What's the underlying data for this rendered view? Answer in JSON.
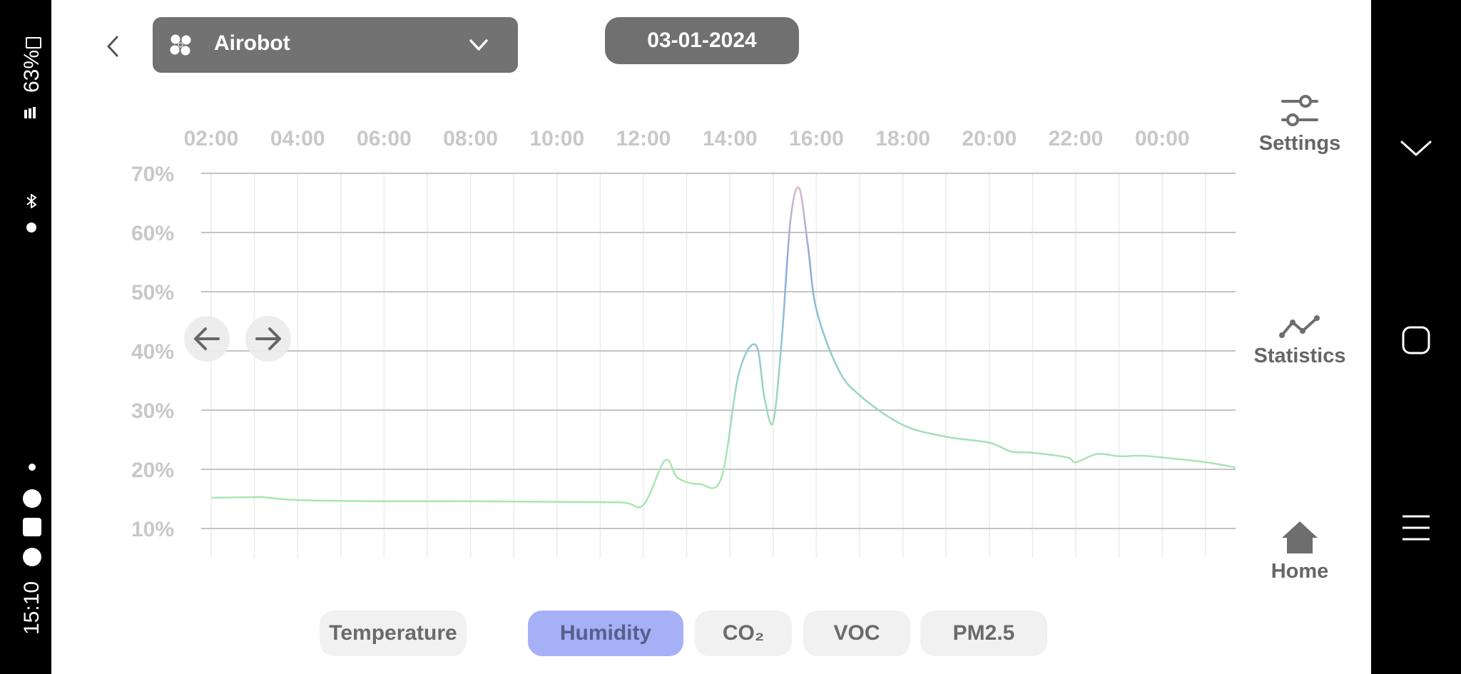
{
  "status_bar": {
    "time": "15:10",
    "battery": "63%",
    "signal": "VoLTE1"
  },
  "header": {
    "back_icon": "chevron-left-icon",
    "device": {
      "name": "Airobot",
      "icon": "fan-icon",
      "dropdown_icon": "chevron-down-icon"
    },
    "date": "03-01-2024"
  },
  "side_nav": [
    {
      "label": "Settings",
      "icon": "sliders-icon"
    },
    {
      "label": "Statistics",
      "icon": "line-chart-icon"
    },
    {
      "label": "Home",
      "icon": "home-icon"
    }
  ],
  "tabs": [
    {
      "label": "Temperature",
      "active": false
    },
    {
      "label": "Humidity",
      "active": true
    },
    {
      "label": "CO₂",
      "active": false
    },
    {
      "label": "VOC",
      "active": false
    },
    {
      "label": "PM2.5",
      "active": false
    }
  ],
  "colors": {
    "active_tab": "#a6b0f7",
    "line_low": "#a8e6b2",
    "line_mid": "#8fb6d6",
    "line_high": "#e8b6c6"
  },
  "chart_data": {
    "type": "line",
    "x_tick_labels": [
      "02:00",
      "04:00",
      "06:00",
      "08:00",
      "10:00",
      "12:00",
      "14:00",
      "16:00",
      "18:00",
      "20:00",
      "22:00",
      "00:00"
    ],
    "y_tick_labels": [
      "70%",
      "60%",
      "50%",
      "40%",
      "30%",
      "20%",
      "10%"
    ],
    "y_ticks": [
      70,
      60,
      50,
      40,
      30,
      20,
      10
    ],
    "ylim": [
      10,
      70
    ],
    "x_range_hours": [
      2,
      25.7
    ],
    "grid": true,
    "series": [
      {
        "x": [
          2.0,
          3.0,
          3.2,
          4.0,
          6.0,
          8.0,
          10.0,
          11.5,
          12.0,
          12.5,
          12.8,
          13.3,
          13.8,
          14.2,
          14.6,
          14.8,
          15.0,
          15.2,
          15.4,
          15.6,
          15.8,
          16.0,
          16.5,
          17.0,
          18.0,
          19.0,
          20.0,
          20.5,
          21.0,
          21.8,
          22.0,
          22.5,
          23.0,
          23.5,
          24.0,
          25.0,
          25.7
        ],
        "y": [
          15.2,
          15.3,
          15.3,
          14.8,
          14.6,
          14.6,
          14.5,
          14.4,
          14.0,
          21.5,
          18.5,
          17.5,
          18.5,
          36.0,
          41.0,
          32.0,
          28.0,
          42.0,
          62.0,
          67.5,
          58.0,
          47.0,
          37.0,
          32.5,
          27.5,
          25.5,
          24.5,
          23.0,
          22.8,
          22.0,
          21.2,
          22.6,
          22.2,
          22.3,
          22.0,
          21.2,
          20.3
        ]
      }
    ]
  }
}
